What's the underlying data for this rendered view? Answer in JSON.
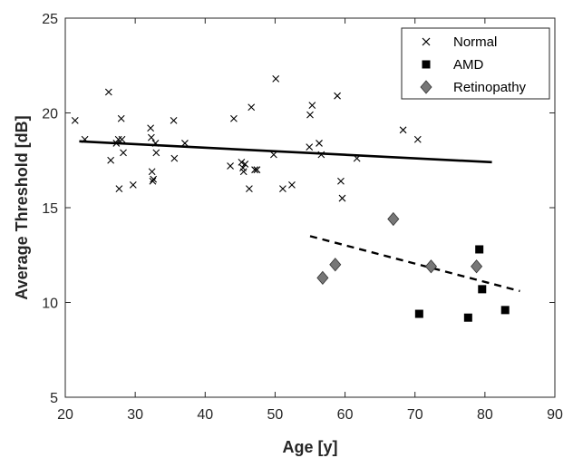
{
  "chart_data": {
    "type": "scatter",
    "xlabel": "Age [y]",
    "ylabel": "Average Threshold [dB]",
    "xlim": [
      20,
      90
    ],
    "ylim": [
      5,
      25
    ],
    "xticks": [
      "20",
      "30",
      "40",
      "50",
      "60",
      "70",
      "80",
      "90"
    ],
    "yticks": [
      "5",
      "10",
      "15",
      "20",
      "25"
    ],
    "legend_position": "top-right",
    "series": [
      {
        "name": "Normal",
        "marker": "x",
        "color": "#000000",
        "points": [
          [
            21.4,
            19.6
          ],
          [
            22.8,
            18.6
          ],
          [
            26.2,
            21.1
          ],
          [
            26.5,
            17.5
          ],
          [
            27.3,
            18.4
          ],
          [
            27.6,
            18.6
          ],
          [
            27.7,
            16.0
          ],
          [
            28.0,
            19.7
          ],
          [
            28.1,
            18.6
          ],
          [
            28.3,
            17.9
          ],
          [
            29.7,
            16.2
          ],
          [
            32.2,
            19.2
          ],
          [
            32.3,
            18.7
          ],
          [
            32.4,
            16.9
          ],
          [
            32.5,
            16.4
          ],
          [
            32.6,
            16.5
          ],
          [
            32.9,
            18.4
          ],
          [
            33.0,
            17.9
          ],
          [
            35.5,
            19.6
          ],
          [
            35.6,
            17.6
          ],
          [
            37.1,
            18.4
          ],
          [
            43.6,
            17.2
          ],
          [
            44.1,
            19.7
          ],
          [
            45.2,
            17.4
          ],
          [
            45.4,
            17.1
          ],
          [
            45.5,
            16.9
          ],
          [
            45.7,
            17.3
          ],
          [
            46.3,
            16.0
          ],
          [
            46.6,
            20.3
          ],
          [
            47.1,
            17.0
          ],
          [
            47.4,
            17.0
          ],
          [
            49.8,
            17.8
          ],
          [
            50.1,
            21.8
          ],
          [
            51.1,
            16.0
          ],
          [
            52.4,
            16.2
          ],
          [
            54.9,
            18.2
          ],
          [
            55.0,
            19.9
          ],
          [
            55.3,
            20.4
          ],
          [
            56.3,
            18.4
          ],
          [
            56.6,
            17.8
          ],
          [
            58.9,
            20.9
          ],
          [
            59.4,
            16.4
          ],
          [
            59.6,
            15.5
          ],
          [
            61.7,
            17.6
          ],
          [
            68.3,
            19.1
          ],
          [
            70.4,
            18.6
          ]
        ]
      },
      {
        "name": "AMD",
        "marker": "square",
        "color": "#000000",
        "points": [
          [
            70.6,
            9.4
          ],
          [
            77.6,
            9.2
          ],
          [
            79.2,
            12.8
          ],
          [
            79.6,
            10.7
          ],
          [
            82.9,
            9.6
          ]
        ]
      },
      {
        "name": "Retinopathy",
        "marker": "diamond",
        "color": "#777777",
        "points": [
          [
            56.8,
            11.3
          ],
          [
            58.6,
            12.0
          ],
          [
            66.9,
            14.4
          ],
          [
            72.3,
            11.9
          ],
          [
            78.8,
            11.9
          ]
        ]
      }
    ],
    "fit_lines": [
      {
        "style": "solid",
        "x": [
          22.0,
          81.0
        ],
        "y": [
          18.5,
          17.4
        ]
      },
      {
        "style": "dashed",
        "x": [
          55.0,
          85.0
        ],
        "y": [
          13.5,
          10.6
        ]
      }
    ]
  }
}
